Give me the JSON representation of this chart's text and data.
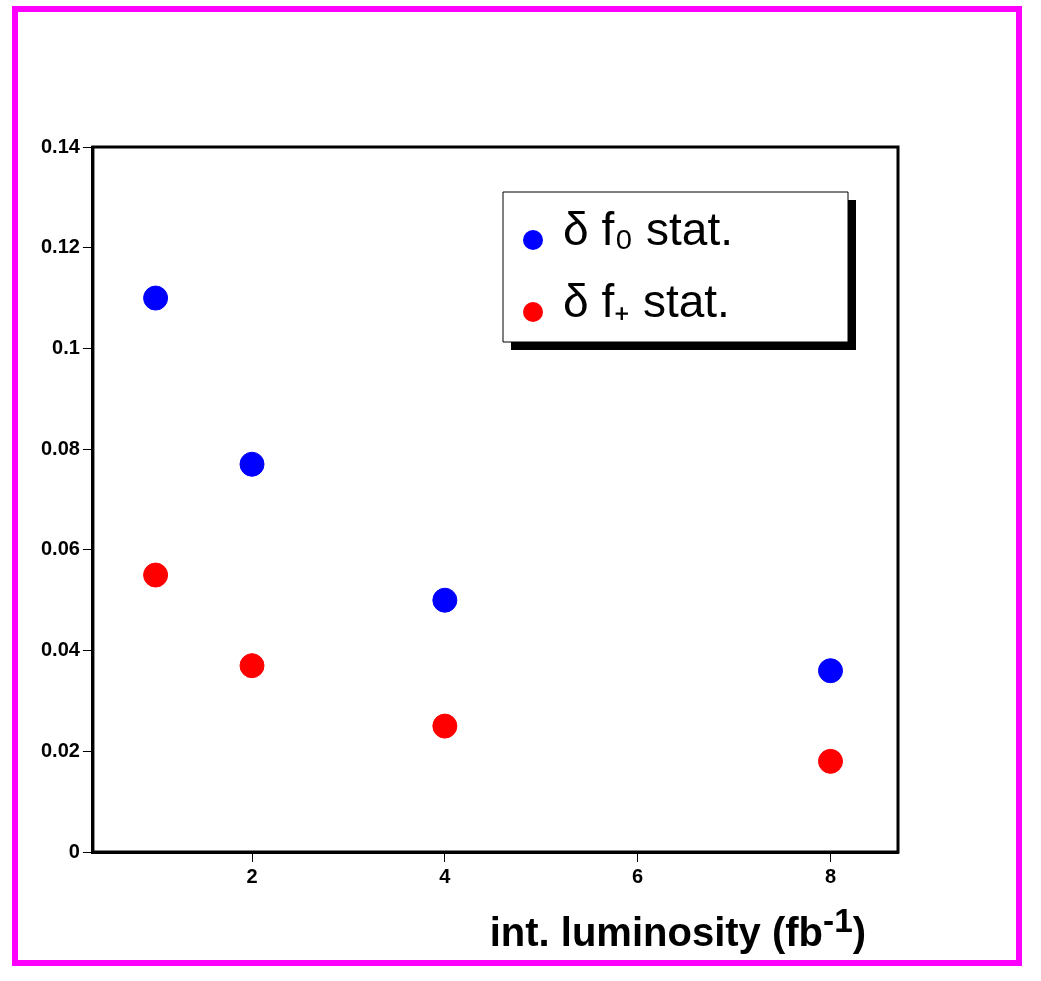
{
  "chart_data": {
    "type": "scatter",
    "xlabel": "int. luminosity (fb$^{-1}$)",
    "x": [
      1,
      2,
      4,
      8
    ],
    "series": [
      {
        "name": "δ f₀ stat.",
        "color": "#0000ff",
        "values": [
          0.11,
          0.077,
          0.05,
          0.036
        ]
      },
      {
        "name": "δ f₊ stat.",
        "color": "#ff0000",
        "values": [
          0.055,
          0.037,
          0.025,
          0.018
        ]
      }
    ],
    "xlim": [
      0.35,
      8.7
    ],
    "xticks": [
      2,
      4,
      6,
      8
    ],
    "ylim": [
      0,
      0.14
    ],
    "yticks": [
      0,
      0.02,
      0.04,
      0.06,
      0.08,
      0.1,
      0.12,
      0.14
    ],
    "grid": false,
    "legend": "top right",
    "marker": "circle"
  }
}
